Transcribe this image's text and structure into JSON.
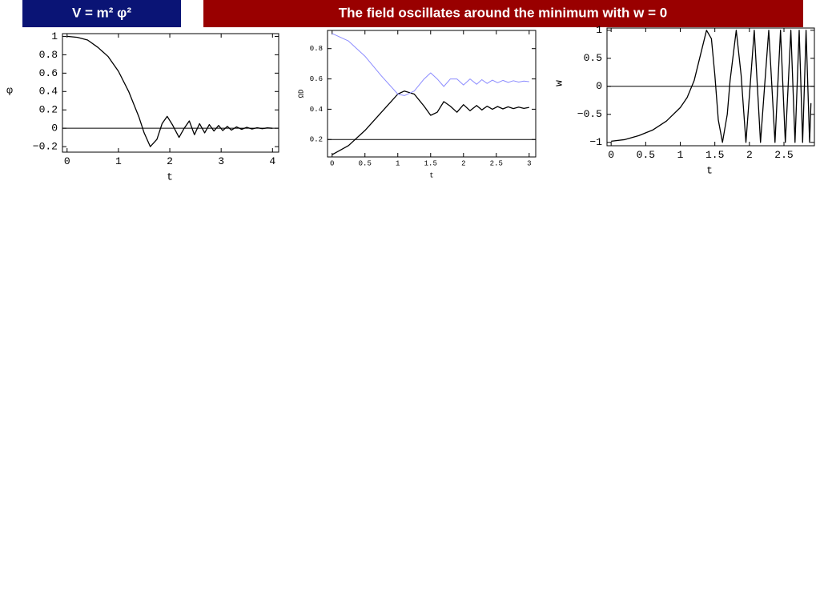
{
  "header": {
    "left": "V = m² φ²",
    "right": "The field oscillates around the minimum with  w = 0"
  },
  "chart_data": [
    {
      "type": "line",
      "xlabel": "t",
      "ylabel": "φ",
      "xlim": [
        -0.09,
        4.12
      ],
      "ylim": [
        -0.26,
        1.03
      ],
      "xticks": [
        0,
        1,
        2,
        3,
        4
      ],
      "yticks": [
        {
          "value": -0.2,
          "label": "−0.2"
        },
        0,
        0.2,
        0.4,
        0.6,
        0.8,
        1
      ],
      "hline": 0,
      "x": [
        0,
        0.2,
        0.4,
        0.6,
        0.8,
        1.0,
        1.2,
        1.4,
        1.5,
        1.62,
        1.75,
        1.85,
        1.95,
        2.05,
        2.18,
        2.28,
        2.38,
        2.48,
        2.58,
        2.68,
        2.77,
        2.86,
        2.95,
        3.03,
        3.12,
        3.2,
        3.3,
        3.4,
        3.5,
        3.6,
        3.7,
        3.8,
        3.9,
        4.0
      ],
      "series": [
        {
          "name": "φ",
          "color": "#000000",
          "values": [
            1,
            0.99,
            0.96,
            0.88,
            0.78,
            0.62,
            0.4,
            0.12,
            -0.05,
            -0.2,
            -0.12,
            0.05,
            0.13,
            0.04,
            -0.1,
            0.0,
            0.08,
            -0.07,
            0.05,
            -0.05,
            0.04,
            -0.03,
            0.03,
            -0.025,
            0.02,
            -0.02,
            0.015,
            -0.012,
            0.01,
            -0.008,
            0.006,
            -0.005,
            0.004,
            0.0
          ]
        }
      ]
    },
    {
      "type": "line",
      "xlabel": "t",
      "ylabel": "ΩD",
      "xlim": [
        -0.07,
        3.1
      ],
      "ylim": [
        0.085,
        0.92
      ],
      "xticks": [
        0,
        0.5,
        1,
        1.5,
        2,
        2.5,
        3
      ],
      "yticks": [
        0.2,
        0.4,
        0.6,
        0.8
      ],
      "hline": 0.2,
      "x": [
        0,
        0.25,
        0.5,
        0.75,
        1.0,
        1.1,
        1.25,
        1.4,
        1.5,
        1.6,
        1.7,
        1.8,
        1.9,
        2.0,
        2.1,
        2.2,
        2.28,
        2.36,
        2.44,
        2.52,
        2.6,
        2.68,
        2.76,
        2.84,
        2.92,
        3.0
      ],
      "series": [
        {
          "name": "black",
          "color": "#000000",
          "values": [
            0.1,
            0.16,
            0.26,
            0.38,
            0.5,
            0.52,
            0.5,
            0.42,
            0.36,
            0.38,
            0.45,
            0.42,
            0.38,
            0.43,
            0.39,
            0.425,
            0.395,
            0.42,
            0.4,
            0.418,
            0.402,
            0.416,
            0.404,
            0.414,
            0.405,
            0.412
          ]
        },
        {
          "name": "blue",
          "color": "#8c8cff",
          "values": [
            0.9,
            0.85,
            0.75,
            0.62,
            0.5,
            0.49,
            0.52,
            0.6,
            0.64,
            0.6,
            0.55,
            0.6,
            0.6,
            0.56,
            0.6,
            0.565,
            0.595,
            0.57,
            0.592,
            0.575,
            0.59,
            0.577,
            0.588,
            0.579,
            0.586,
            0.582
          ]
        }
      ]
    },
    {
      "type": "line",
      "xlabel": "t",
      "ylabel": "w",
      "xlim": [
        -0.06,
        2.94
      ],
      "ylim": [
        -1.06,
        1.04
      ],
      "xticks": [
        0,
        0.5,
        1,
        1.5,
        2,
        2.5
      ],
      "yticks": [
        {
          "value": -1,
          "label": "−1"
        },
        {
          "value": -0.5,
          "label": "−0.5"
        },
        0,
        0.5,
        1
      ],
      "hline": 0,
      "x": [
        0,
        0.2,
        0.4,
        0.6,
        0.8,
        1.0,
        1.1,
        1.2,
        1.3,
        1.38,
        1.45,
        1.5,
        1.55,
        1.61,
        1.68,
        1.72,
        1.81,
        1.88,
        1.95,
        2.01,
        2.07,
        2.115,
        2.16,
        2.22,
        2.28,
        2.325,
        2.37,
        2.41,
        2.45,
        2.485,
        2.52,
        2.56,
        2.6,
        2.63,
        2.66,
        2.69,
        2.72,
        2.745,
        2.77,
        2.795,
        2.82,
        2.845,
        2.87,
        2.89
      ],
      "series": [
        {
          "name": "w",
          "color": "#000000",
          "values": [
            -0.98,
            -0.95,
            -0.88,
            -0.78,
            -0.62,
            -0.38,
            -0.2,
            0.1,
            0.6,
            1.0,
            0.85,
            0.2,
            -0.6,
            -1.0,
            -0.5,
            0.1,
            1.0,
            0.2,
            -1.0,
            0,
            1.0,
            0,
            -1.0,
            0,
            1.0,
            0,
            -1.0,
            0,
            1.0,
            0,
            -1.0,
            0,
            1.0,
            0,
            -1.0,
            0,
            1.0,
            0,
            -1.0,
            0,
            1.0,
            0,
            -1.0,
            -0.3
          ]
        }
      ]
    }
  ]
}
